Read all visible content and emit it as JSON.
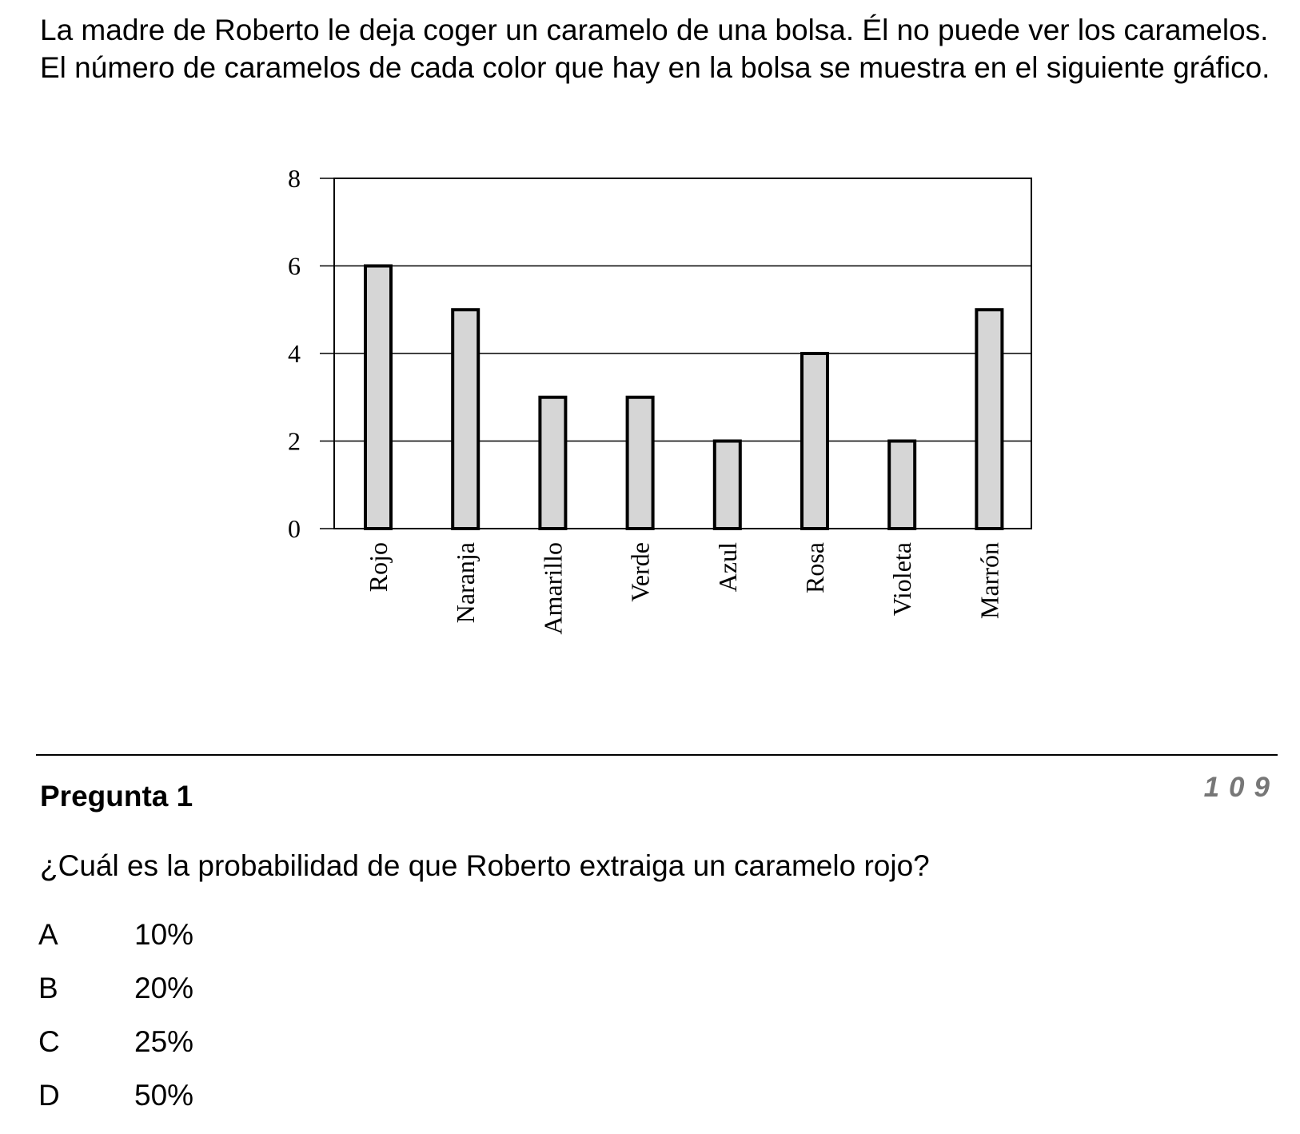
{
  "intro": {
    "text": "La madre de Roberto le deja coger un caramelo de una bolsa. Él no puede ver los caramelos. El número de caramelos de cada color que hay en la bolsa se muestra en el siguiente gráfico."
  },
  "chart_data": {
    "type": "bar",
    "categories": [
      "Rojo",
      "Naranja",
      "Amarillo",
      "Verde",
      "Azul",
      "Rosa",
      "Violeta",
      "Marrón"
    ],
    "values": [
      6,
      5,
      3,
      3,
      2,
      4,
      2,
      5
    ],
    "ylim": [
      0,
      8
    ],
    "yticks": [
      "0",
      "2",
      "4",
      "6",
      "8"
    ],
    "grid": true,
    "bar_fill": "#d6d6d6",
    "bar_stroke": "#000000"
  },
  "question": {
    "title": "Pregunta 1",
    "code": "109",
    "text": "¿Cuál es la probabilidad de que Roberto extraiga un caramelo rojo?",
    "options": [
      {
        "letter": "A",
        "value": "10%"
      },
      {
        "letter": "B",
        "value": "20%"
      },
      {
        "letter": "C",
        "value": "25%"
      },
      {
        "letter": "D",
        "value": "50%"
      }
    ]
  }
}
